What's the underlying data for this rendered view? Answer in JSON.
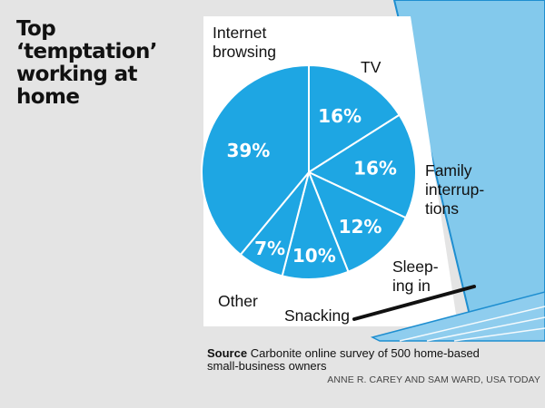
{
  "title_lines": [
    "Top",
    "‘temptation’",
    "working at",
    "home"
  ],
  "source": {
    "label": "Source",
    "text": "Carbonite online survey of 500 home-based",
    "text_line2": "small-business owners"
  },
  "credit": "ANNE R. CAREY AND SAM WARD, USA TODAY",
  "colors": {
    "background": "#e4e4e4",
    "pie": "#1ea6e3",
    "screen": "#ffffff",
    "laptop_bezel": "#83c9ec",
    "laptop_outline": "#1e8ed0",
    "hinge": "#111111",
    "keyboard": "#8fcdee"
  },
  "chart_data": {
    "type": "pie",
    "slices": [
      {
        "label": "TV",
        "value": 16,
        "display": "16%",
        "label_lines": [
          "TV"
        ]
      },
      {
        "label": "Family interruptions",
        "value": 16,
        "display": "16%",
        "label_lines": [
          "Family",
          "interrup-",
          "tions"
        ]
      },
      {
        "label": "Sleeping in",
        "value": 12,
        "display": "12%",
        "label_lines": [
          "Sleep-",
          "ing in"
        ]
      },
      {
        "label": "Snacking",
        "value": 10,
        "display": "10%",
        "label_lines": [
          "Snacking"
        ]
      },
      {
        "label": "Other",
        "value": 7,
        "display": "7%",
        "label_lines": [
          "Other"
        ]
      },
      {
        "label": "Internet browsing",
        "value": 39,
        "display": "39%",
        "label_lines": [
          "Internet",
          "browsing"
        ]
      }
    ]
  }
}
